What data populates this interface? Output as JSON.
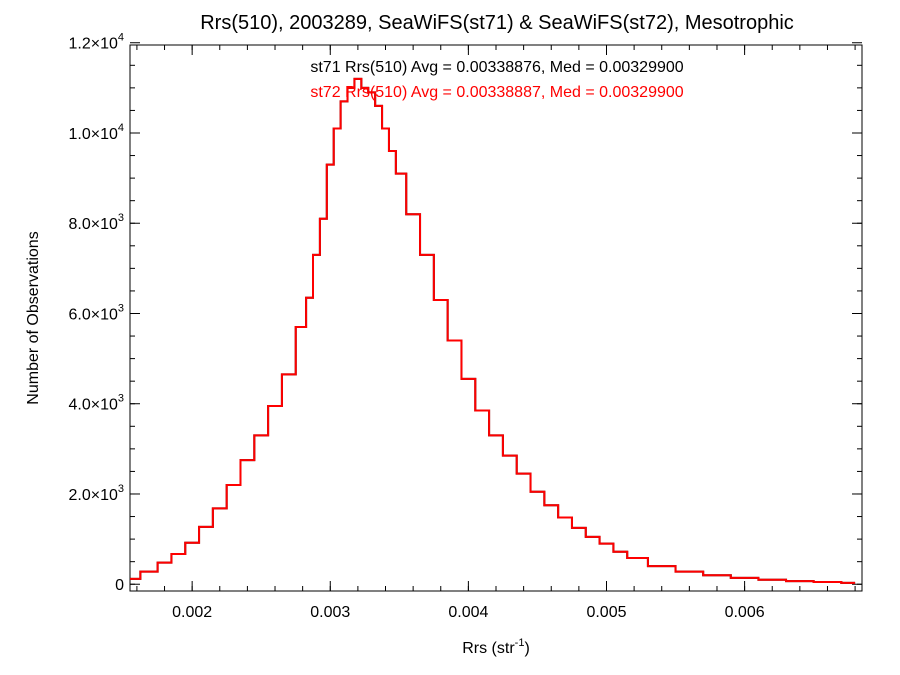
{
  "chart_data": {
    "type": "line",
    "step": true,
    "title": "Rrs(510), 2003289, SeaWiFS(st71) & SeaWiFS(st72), Mesotrophic",
    "xlabel": {
      "base": "Rrs (str",
      "sup": "-1",
      "suffix": ")"
    },
    "ylabel": "Number of Observations",
    "xlim": [
      0.00155,
      0.00685
    ],
    "ylim": [
      -150,
      11950
    ],
    "xticks": [
      {
        "value": 0.002,
        "label": "0.002"
      },
      {
        "value": 0.003,
        "label": "0.003"
      },
      {
        "value": 0.004,
        "label": "0.004"
      },
      {
        "value": 0.005,
        "label": "0.005"
      },
      {
        "value": 0.006,
        "label": "0.006"
      }
    ],
    "yticks": [
      {
        "value": 0,
        "mant": "0",
        "exp": ""
      },
      {
        "value": 2000,
        "mant": "2.0×10",
        "exp": "3"
      },
      {
        "value": 4000,
        "mant": "4.0×10",
        "exp": "3"
      },
      {
        "value": 6000,
        "mant": "6.0×10",
        "exp": "3"
      },
      {
        "value": 8000,
        "mant": "8.0×10",
        "exp": "3"
      },
      {
        "value": 10000,
        "mant": "1.0×10",
        "exp": "4"
      },
      {
        "value": 12000,
        "mant": "1.2×10",
        "exp": "4"
      }
    ],
    "annotations": [
      {
        "text": "st71 Rrs(510) Avg = 0.00338876, Med = 0.00329900",
        "color": "#000000"
      },
      {
        "text": "st72 Rrs(510) Avg = 0.00338887, Med = 0.00329900",
        "color": "#ff0000"
      }
    ],
    "series": [
      {
        "color": "#000000",
        "x": [
          0.00155,
          0.0017,
          0.0018,
          0.0019,
          0.002,
          0.0021,
          0.0022,
          0.0023,
          0.0024,
          0.0025,
          0.0026,
          0.0027,
          0.0028,
          0.00285,
          0.0029,
          0.00295,
          0.003,
          0.00305,
          0.0031,
          0.00315,
          0.0032,
          0.00325,
          0.0033,
          0.00335,
          0.0034,
          0.00345,
          0.0035,
          0.0036,
          0.0037,
          0.0038,
          0.0039,
          0.004,
          0.0041,
          0.0042,
          0.0043,
          0.0044,
          0.0045,
          0.0046,
          0.0047,
          0.0048,
          0.0049,
          0.005,
          0.0051,
          0.0052,
          0.0054,
          0.0056,
          0.0058,
          0.006,
          0.0062,
          0.0064,
          0.0066,
          0.0068
        ],
        "y": [
          120,
          280,
          480,
          670,
          920,
          1270,
          1680,
          2200,
          2750,
          3300,
          3950,
          4650,
          5700,
          6350,
          7300,
          8100,
          9300,
          10100,
          10700,
          11000,
          11200,
          11000,
          10900,
          10600,
          10100,
          9600,
          9100,
          8200,
          7300,
          6300,
          5400,
          4550,
          3850,
          3300,
          2850,
          2450,
          2050,
          1750,
          1480,
          1250,
          1050,
          900,
          720,
          580,
          400,
          280,
          200,
          140,
          100,
          70,
          50,
          30
        ]
      },
      {
        "color": "#ff0000",
        "x": [
          0.00155,
          0.0017,
          0.0018,
          0.0019,
          0.002,
          0.0021,
          0.0022,
          0.0023,
          0.0024,
          0.0025,
          0.0026,
          0.0027,
          0.0028,
          0.00285,
          0.0029,
          0.00295,
          0.003,
          0.00305,
          0.0031,
          0.00315,
          0.0032,
          0.00325,
          0.0033,
          0.00335,
          0.0034,
          0.00345,
          0.0035,
          0.0036,
          0.0037,
          0.0038,
          0.0039,
          0.004,
          0.0041,
          0.0042,
          0.0043,
          0.0044,
          0.0045,
          0.0046,
          0.0047,
          0.0048,
          0.0049,
          0.005,
          0.0051,
          0.0052,
          0.0054,
          0.0056,
          0.0058,
          0.006,
          0.0062,
          0.0064,
          0.0066,
          0.0068
        ],
        "y": [
          120,
          280,
          480,
          670,
          920,
          1270,
          1680,
          2200,
          2750,
          3300,
          3950,
          4650,
          5700,
          6350,
          7300,
          8100,
          9300,
          10100,
          10700,
          11000,
          11200,
          11000,
          10900,
          10600,
          10100,
          9600,
          9100,
          8200,
          7300,
          6300,
          5400,
          4550,
          3850,
          3300,
          2850,
          2450,
          2050,
          1750,
          1480,
          1250,
          1050,
          900,
          720,
          580,
          400,
          280,
          200,
          140,
          100,
          70,
          50,
          30
        ]
      }
    ]
  }
}
